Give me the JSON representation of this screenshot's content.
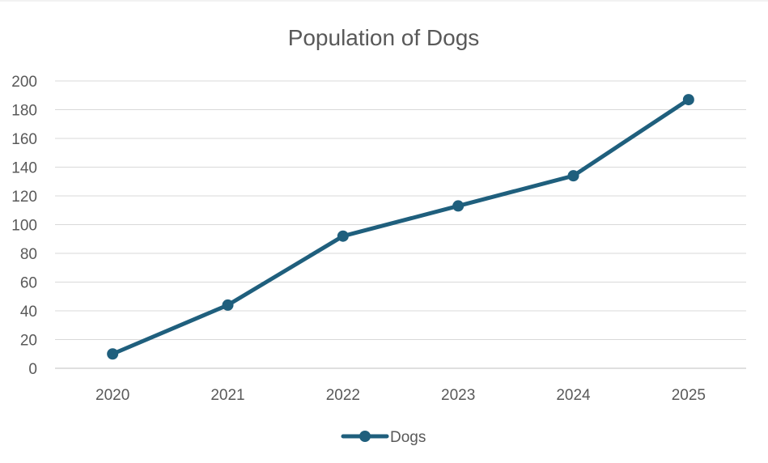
{
  "chart_data": {
    "type": "line",
    "title": "Population of Dogs",
    "xlabel": "",
    "ylabel": "",
    "categories": [
      "2020",
      "2021",
      "2022",
      "2023",
      "2024",
      "2025"
    ],
    "series": [
      {
        "name": "Dogs",
        "values": [
          10,
          44,
          92,
          113,
          134,
          187
        ],
        "color": "#1F5F7D"
      }
    ],
    "ylim": [
      0,
      200
    ],
    "y_ticks": [
      "0",
      "20",
      "40",
      "60",
      "80",
      "100",
      "120",
      "140",
      "160",
      "180",
      "200"
    ],
    "grid": true,
    "legend": "bottom",
    "markers": true
  }
}
